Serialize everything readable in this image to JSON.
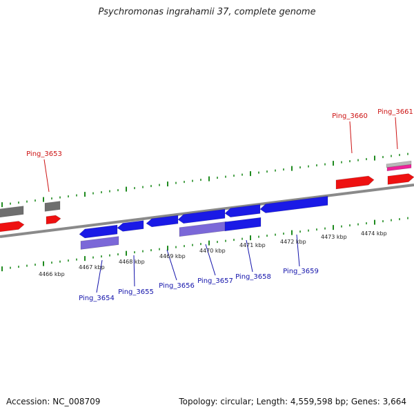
{
  "title": "Psychromonas ingrahamii 37, complete genome",
  "footer": {
    "accession": "Accession: NC_008709",
    "summary": "Topology: circular; Length: 4,559,598 bp; Genes: 3,664"
  },
  "colors": {
    "forward_gene": "#ee1111",
    "reverse_gene": "#1a1ae6",
    "reverse_gene_light": "#7b68d8",
    "gray_gene": "#6f6f6f",
    "pink_gene": "#ee2299",
    "light_gray_gene": "#b8b8b8",
    "backbone": "#8a8a8a",
    "tick": "#1e8a1e",
    "forward_label": "#cc1111",
    "reverse_label": "#1111aa"
  },
  "ticks": [
    {
      "label": "4466 kbp"
    },
    {
      "label": "4467 kbp"
    },
    {
      "label": "4468 kbp"
    },
    {
      "label": "4469 kbp"
    },
    {
      "label": "4470 kbp"
    },
    {
      "label": "4471 kbp"
    },
    {
      "label": "4472 kbp"
    },
    {
      "label": "4473 kbp"
    },
    {
      "label": "4474 kbp"
    }
  ],
  "gene_labels": [
    {
      "name": "Ping_3653",
      "strand": "forward"
    },
    {
      "name": "Ping_3654",
      "strand": "reverse"
    },
    {
      "name": "Ping_3655",
      "strand": "reverse"
    },
    {
      "name": "Ping_3656",
      "strand": "reverse"
    },
    {
      "name": "Ping_3657",
      "strand": "reverse"
    },
    {
      "name": "Ping_3658",
      "strand": "reverse"
    },
    {
      "name": "Ping_3659",
      "strand": "reverse"
    },
    {
      "name": "Ping_3660",
      "strand": "forward"
    },
    {
      "name": "Ping_3661",
      "strand": "forward"
    }
  ]
}
